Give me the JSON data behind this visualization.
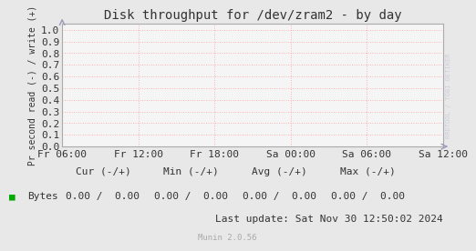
{
  "title": "Disk throughput for /dev/zram2 - by day",
  "ylabel": "Pr second read (-) / write (+)",
  "background_color": "#e8e8e8",
  "plot_bg_color": "#f5f5f5",
  "grid_color": "#ff9999",
  "border_color": "#aaaaaa",
  "x_ticks": [
    "Fr 06:00",
    "Fr 12:00",
    "Fr 18:00",
    "Sa 00:00",
    "Sa 06:00",
    "Sa 12:00"
  ],
  "y_ticks": [
    0.0,
    0.1,
    0.2,
    0.3,
    0.4,
    0.5,
    0.6,
    0.7,
    0.8,
    0.9,
    1.0
  ],
  "ylim": [
    0.0,
    1.05
  ],
  "legend_label": "Bytes",
  "legend_color": "#00aa00",
  "cur_label": "Cur (-/+)",
  "min_label": "Min (-/+)",
  "avg_label": "Avg (-/+)",
  "max_label": "Max (-/+)",
  "cur_val": "0.00 /  0.00",
  "min_val": "0.00 /  0.00",
  "avg_val": "0.00 /  0.00",
  "max_val": "0.00 /  0.00",
  "last_update": "Last update: Sat Nov 30 12:50:02 2024",
  "munin_version": "Munin 2.0.56",
  "watermark": "RRDTOOL / TOBI OETIKER",
  "title_fontsize": 10,
  "axis_fontsize": 8,
  "legend_fontsize": 8,
  "small_fontsize": 6.5
}
